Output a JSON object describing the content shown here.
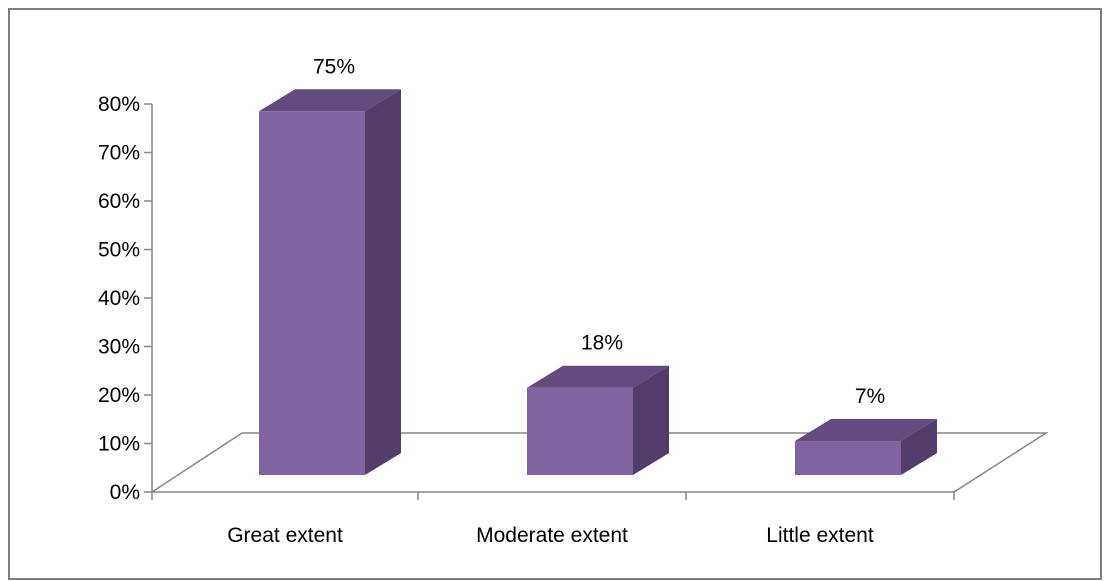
{
  "chart_data": {
    "type": "bar",
    "style": "3d-column",
    "categories": [
      "Great extent",
      "Moderate extent",
      "Little extent"
    ],
    "values": [
      75,
      18,
      7
    ],
    "data_labels": [
      "75%",
      "18%",
      "7%"
    ],
    "title": "",
    "xlabel": "",
    "ylabel": "",
    "ylim": [
      0,
      80
    ],
    "yticks": [
      0,
      10,
      20,
      30,
      40,
      50,
      60,
      70,
      80
    ],
    "ytick_labels": [
      "0%",
      "10%",
      "20%",
      "30%",
      "40%",
      "50%",
      "60%",
      "70%",
      "80%"
    ],
    "grid": false,
    "legend": "none",
    "colors": {
      "bar_front": "#8064a2",
      "bar_side": "#513c6b",
      "bar_top": "#634b80",
      "axis": "#868686",
      "frame": "#7f7f7f"
    }
  }
}
